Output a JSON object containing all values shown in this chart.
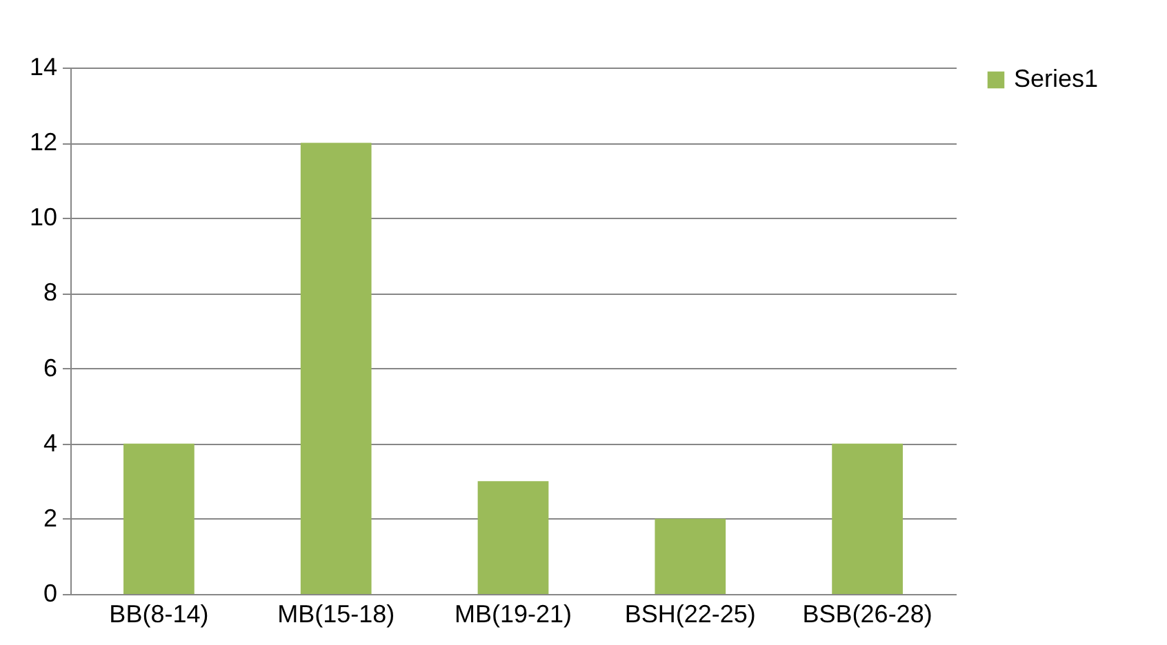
{
  "chart_data": {
    "type": "bar",
    "categories": [
      "BB(8-14)",
      "MB(15-18)",
      "MB(19-21)",
      "BSH(22-25)",
      "BSB(26-28)"
    ],
    "series": [
      {
        "name": "Series1",
        "color": "#9bbb59",
        "values": [
          4,
          12,
          3,
          2,
          4
        ]
      }
    ],
    "ylim": [
      0,
      14
    ],
    "yticks": [
      0,
      2,
      4,
      6,
      8,
      10,
      12,
      14
    ],
    "grid": "y",
    "legend": "right"
  }
}
